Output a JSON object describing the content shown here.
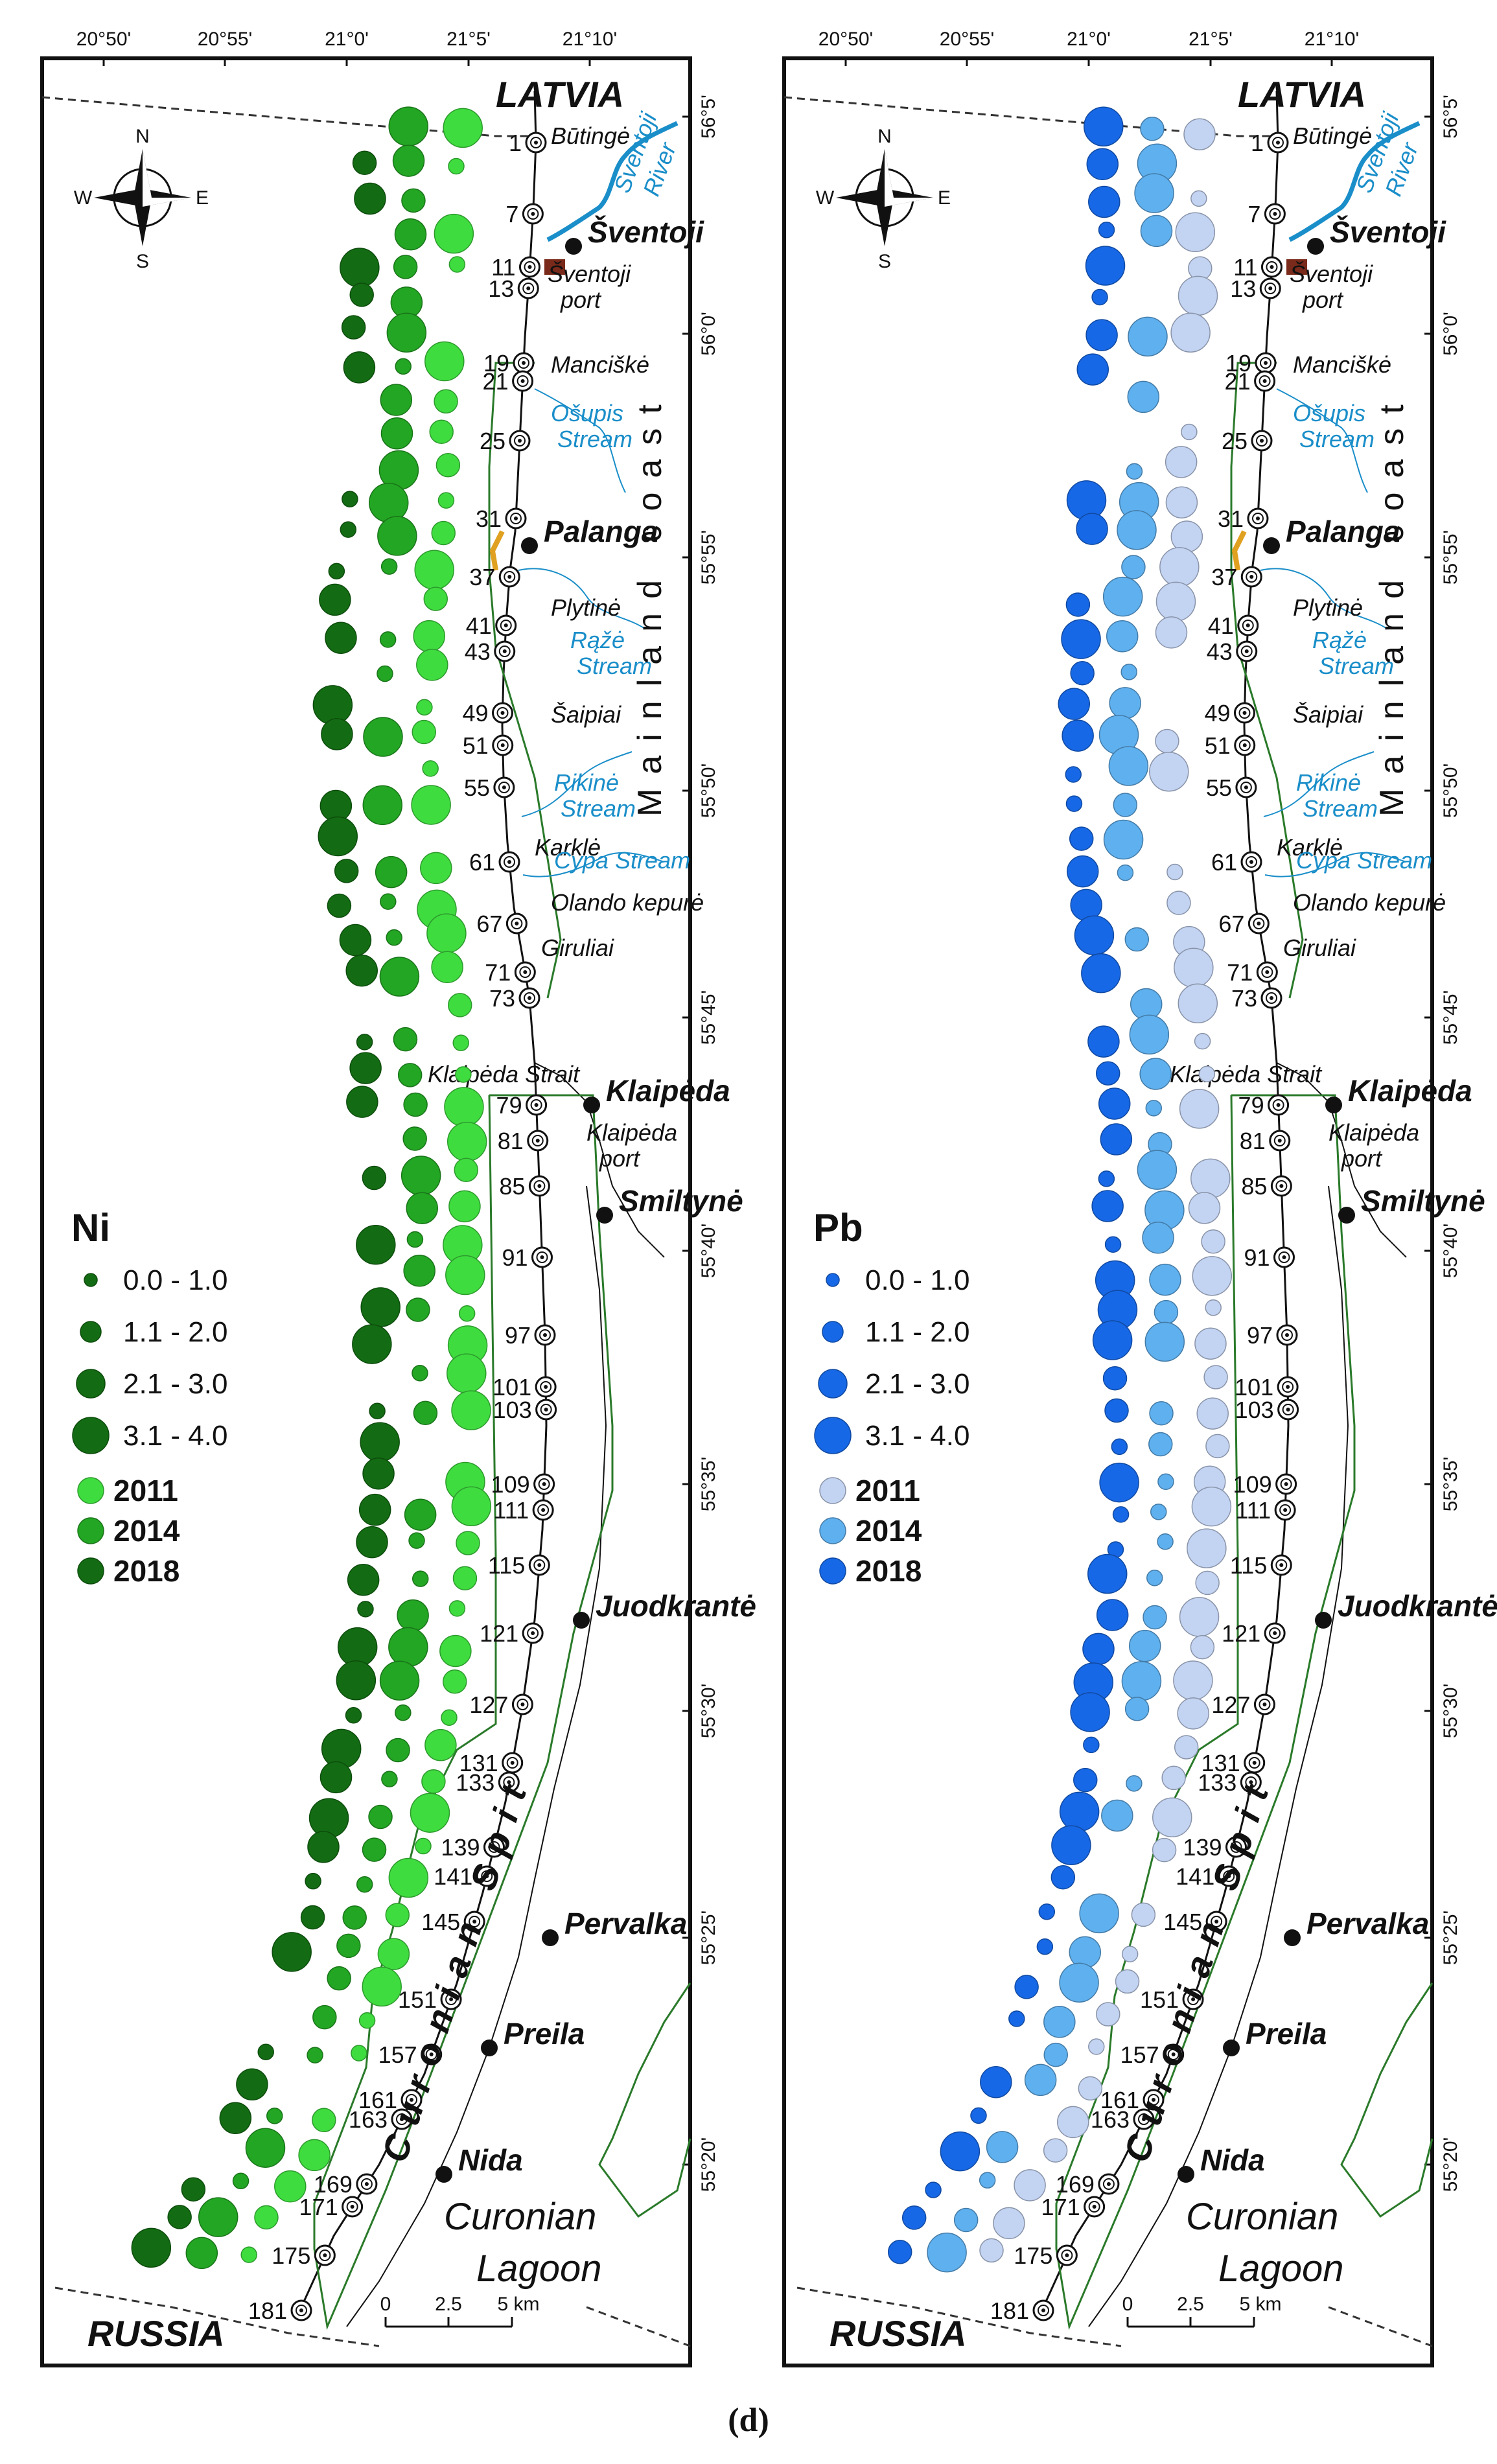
{
  "caption": "(d)",
  "lon_ticks": [
    "20°50'",
    "20°55'",
    "21°0'",
    "21°5'",
    "21°10'"
  ],
  "lat_ticks": [
    "56°5'",
    "56°0'",
    "55°55'",
    "55°50'",
    "55°45'",
    "55°40'",
    "55°35'",
    "55°30'",
    "55°25'",
    "55°20'"
  ],
  "stations": [
    "1",
    "7",
    "11",
    "13",
    "19",
    "21",
    "25",
    "31",
    "37",
    "41",
    "43",
    "49",
    "51",
    "55",
    "61",
    "67",
    "71",
    "73",
    "79",
    "81",
    "85",
    "91",
    "97",
    "101",
    "103",
    "109",
    "111",
    "115",
    "121",
    "127",
    "131",
    "133",
    "139",
    "141",
    "145",
    "151",
    "157",
    "161",
    "163",
    "169",
    "171",
    "175",
    "181"
  ],
  "towns": [
    "Šventoji",
    "Palanga",
    "Klaipėda",
    "Smiltynė",
    "Juodkrantė",
    "Pervalka",
    "Preila",
    "Nida"
  ],
  "places": [
    "Būtingė",
    "Šventoji port",
    "Manciškė",
    "Plytinė",
    "Šaipiai",
    "Karklė",
    "Olando kepurė",
    "Giruliai",
    "Klaipėda Strait",
    "Klaipėda port"
  ],
  "waters": [
    "Šventoji River",
    "Ošupis Stream",
    "Rąžė Stream",
    "Rikinė Stream",
    "Cypa Stream"
  ],
  "countries": {
    "north": "LATVIA",
    "south": "RUSSIA"
  },
  "lagoon": [
    "Curonian",
    "Lagoon"
  ],
  "mainland_label": "Mainland coast",
  "spit_label": "Curonian Spit",
  "compass": {
    "n": "N",
    "s": "S",
    "e": "E",
    "w": "W"
  },
  "scale": [
    "0",
    "2.5",
    "5 km"
  ],
  "ranges": [
    "0.0 - 1.0",
    "1.1 - 2.0",
    "2.1 - 3.0",
    "3.1 - 4.0"
  ],
  "years": [
    "2011",
    "2014",
    "2018"
  ],
  "panels": [
    {
      "element": "Ni",
      "colors": {
        "2011": "#3fdc3f",
        "2014": "#23a623",
        "2018": "#136c13"
      }
    },
    {
      "element": "Pb",
      "colors": {
        "2011": "#c3d3f2",
        "2014": "#5fb0ee",
        "2018": "#1768e6"
      }
    }
  ]
}
